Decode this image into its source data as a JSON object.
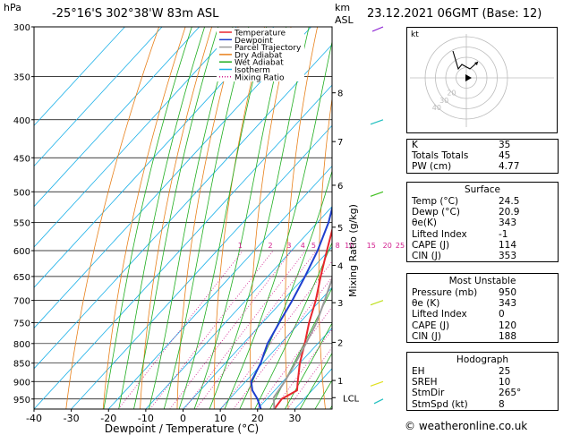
{
  "header": {
    "location": "-25°16'S  302°38'W  83m  ASL",
    "datetime": "23.12.2021  06GMT  (Base: 12)",
    "hpa_label": "hPa",
    "km_label": "km",
    "asl_label": "ASL"
  },
  "chart_data": {
    "type": "line",
    "xlabel": "Dewpoint / Temperature (°C)",
    "ylabel_right": "Mixing Ratio (g/kg)",
    "xlim": [
      -40,
      40
    ],
    "ylim": [
      980,
      300
    ],
    "x_ticks": [
      "-40",
      "-30",
      "-20",
      "-10",
      "0",
      "10",
      "20",
      "30"
    ],
    "pressure_levels": [
      "300",
      "350",
      "400",
      "450",
      "500",
      "550",
      "600",
      "650",
      "700",
      "750",
      "800",
      "850",
      "900",
      "950"
    ],
    "km_labels": [
      {
        "label": "8",
        "p": 368
      },
      {
        "label": "7",
        "p": 428
      },
      {
        "label": "6",
        "p": 490
      },
      {
        "label": "5",
        "p": 558
      },
      {
        "label": "4",
        "p": 628
      },
      {
        "label": "3",
        "p": 705
      },
      {
        "label": "2",
        "p": 797
      },
      {
        "label": "1",
        "p": 897
      },
      {
        "label": "LCL",
        "p": 946
      }
    ],
    "mixing_ratio_labels": [
      "1",
      "2",
      "3",
      "4",
      "5",
      "8",
      "10",
      "15",
      "20",
      "25"
    ],
    "legend": [
      "Temperature",
      "Dewpoint",
      "Parcel Trajectory",
      "Dry Adiabat",
      "Wet Adiabat",
      "Isotherm",
      "Mixing Ratio"
    ],
    "colors": {
      "temperature": "#e8262d",
      "dewpoint": "#1f3fcf",
      "parcel": "#9a9a9a",
      "dry_adiabat": "#e8801a",
      "wet_adiabat": "#1fae1f",
      "isotherm": "#1ab0e8",
      "mixing_ratio": "#d21e8e"
    },
    "series": [
      {
        "name": "Temperature",
        "p": [
          980,
          950,
          925,
          900,
          850,
          800,
          750,
          700,
          650,
          600,
          550,
          500,
          450,
          400,
          350,
          300
        ],
        "t": [
          24.5,
          24.0,
          26.0,
          24.0,
          20.0,
          16.5,
          12.5,
          8.8,
          4.2,
          -0.5,
          -5.5,
          -10.5,
          -16.0,
          -23.0,
          -31.0,
          -40.0
        ]
      },
      {
        "name": "Dewpoint",
        "p": [
          980,
          950,
          925,
          900,
          850,
          800,
          750,
          700,
          650,
          600,
          550,
          500,
          450,
          400,
          350,
          300
        ],
        "t": [
          20.9,
          17.5,
          14.0,
          11.5,
          9.5,
          6.5,
          4.5,
          2.5,
          0.0,
          -3.0,
          -7.0,
          -12.5,
          -17.0,
          -27.0,
          -36.0,
          -48.0
        ]
      },
      {
        "name": "Parcel Trajectory",
        "p": [
          980,
          946,
          900,
          850,
          800,
          750,
          700,
          650,
          600,
          550,
          500,
          450
        ],
        "t": [
          24.5,
          21.5,
          20.5,
          18.8,
          16.8,
          14.5,
          11.2,
          7.5,
          3.2,
          -1.5,
          -6.8,
          -13.0
        ]
      }
    ]
  },
  "hodograph": {
    "label": "kt",
    "ring_labels": [
      "20",
      "30",
      "40"
    ]
  },
  "indices": [
    {
      "label": "K",
      "value": "35"
    },
    {
      "label": "Totals Totals",
      "value": "45"
    },
    {
      "label": "PW (cm)",
      "value": "4.77"
    }
  ],
  "surface": {
    "title": "Surface",
    "rows": [
      {
        "label": "Temp (°C)",
        "value": "24.5"
      },
      {
        "label": "Dewp (°C)",
        "value": "20.9"
      },
      {
        "label": "θe(K)",
        "value": "343"
      },
      {
        "label": "Lifted Index",
        "value": "-1"
      },
      {
        "label": "CAPE (J)",
        "value": "114"
      },
      {
        "label": "CIN (J)",
        "value": "353"
      }
    ]
  },
  "most_unstable": {
    "title": "Most Unstable",
    "rows": [
      {
        "label": "Pressure (mb)",
        "value": "950"
      },
      {
        "label": "θe (K)",
        "value": "343"
      },
      {
        "label": "Lifted Index",
        "value": "0"
      },
      {
        "label": "CAPE (J)",
        "value": "120"
      },
      {
        "label": "CIN (J)",
        "value": "188"
      }
    ]
  },
  "hodograph_table": {
    "title": "Hodograph",
    "rows": [
      {
        "label": "EH",
        "value": "25"
      },
      {
        "label": "SREH",
        "value": "10"
      },
      {
        "label": "StmDir",
        "value": "265°"
      },
      {
        "label": "StmSpd (kt)",
        "value": "8"
      }
    ]
  },
  "footer": "© weatheronline.co.uk"
}
